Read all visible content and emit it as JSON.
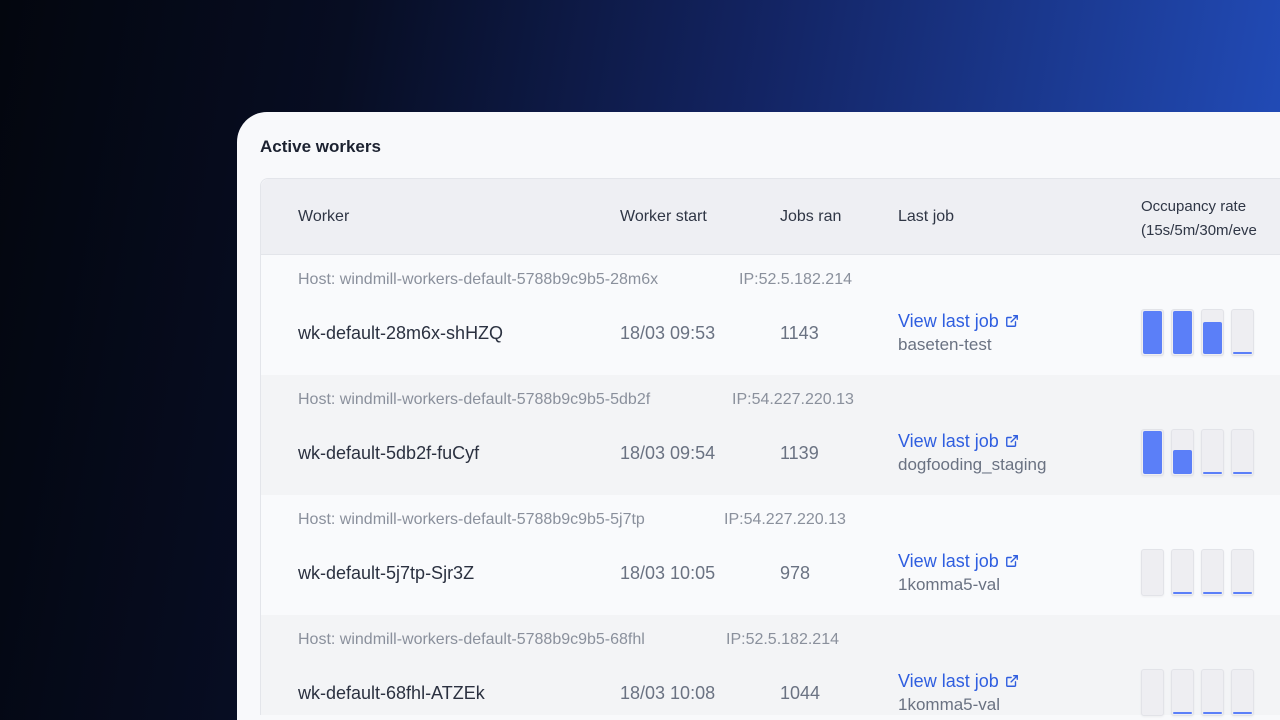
{
  "title": "Active workers",
  "columns": {
    "worker": "Worker",
    "start": "Worker start",
    "jobs": "Jobs ran",
    "last": "Last job",
    "occ1": "Occupancy rate",
    "occ2": "(15s/5m/30m/eve"
  },
  "accent": "#5b7ff8",
  "rows": [
    {
      "host": "Host: windmill-workers-default-5788b9c9b5-28m6x",
      "ip": "IP:52.5.182.214",
      "worker": "wk-default-28m6x-shHZQ",
      "start": "18/03 09:53",
      "jobs": "1143",
      "link": "View last job",
      "job": "baseten-test",
      "occupancy": [
        100,
        100,
        75,
        5
      ]
    },
    {
      "host": "Host: windmill-workers-default-5788b9c9b5-5db2f",
      "ip": "IP:54.227.220.13",
      "worker": "wk-default-5db2f-fuCyf",
      "start": "18/03 09:54",
      "jobs": "1139",
      "link": "View last job",
      "job": "dogfooding_staging",
      "occupancy": [
        100,
        55,
        3,
        3
      ]
    },
    {
      "host": "Host: windmill-workers-default-5788b9c9b5-5j7tp",
      "ip": "IP:54.227.220.13",
      "worker": "wk-default-5j7tp-Sjr3Z",
      "start": "18/03 10:05",
      "jobs": "978",
      "link": "View last job",
      "job": "1komma5-val",
      "occupancy": [
        0,
        3,
        3,
        5
      ]
    },
    {
      "host": "Host: windmill-workers-default-5788b9c9b5-68fhl",
      "ip": "IP:52.5.182.214",
      "worker": "wk-default-68fhl-ATZEk",
      "start": "18/03 10:08",
      "jobs": "1044",
      "link": "View last job",
      "job": "1komma5-val",
      "occupancy": [
        0,
        3,
        4,
        5
      ]
    }
  ]
}
